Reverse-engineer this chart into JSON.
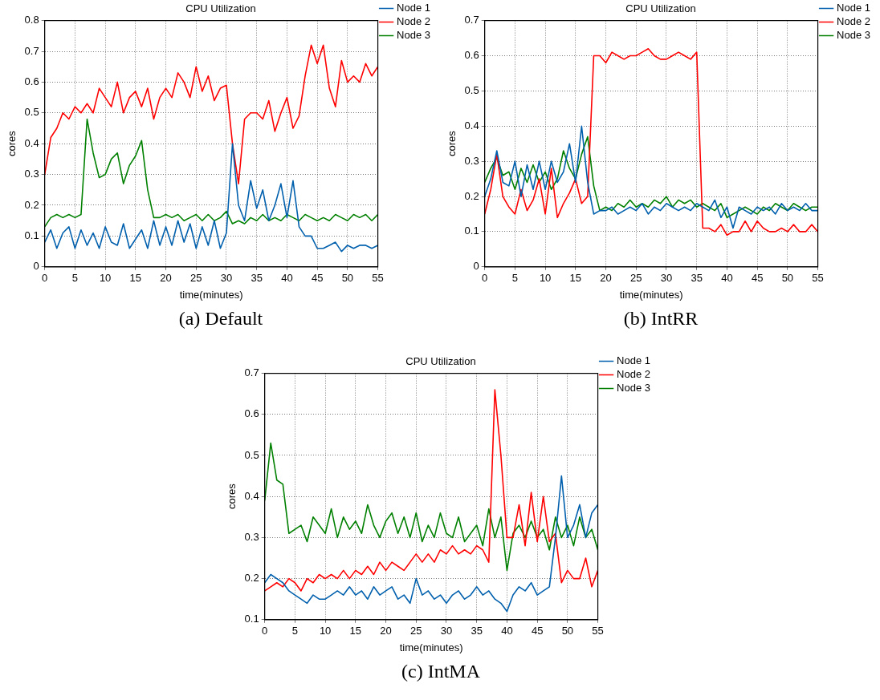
{
  "chart_data": [
    {
      "type": "line",
      "title": "CPU Utilization",
      "xlabel": "time(minutes)",
      "ylabel": "cores",
      "annotations": [
        "(a) Default"
      ],
      "legend": "top right",
      "grid": true,
      "marker": "none",
      "x": [
        0,
        1,
        2,
        3,
        4,
        5,
        6,
        7,
        8,
        9,
        10,
        11,
        12,
        13,
        14,
        15,
        16,
        17,
        18,
        19,
        20,
        21,
        22,
        23,
        24,
        25,
        26,
        27,
        28,
        29,
        30,
        31,
        32,
        33,
        34,
        35,
        36,
        37,
        38,
        39,
        40,
        41,
        42,
        43,
        44,
        45,
        46,
        47,
        48,
        49,
        50,
        51,
        52,
        53,
        54,
        55
      ],
      "xlim": [
        0,
        55
      ],
      "xticks": [
        0,
        5,
        10,
        15,
        20,
        25,
        30,
        35,
        40,
        45,
        50,
        55
      ],
      "ylim": [
        0,
        0.8
      ],
      "yticks": [
        0,
        0.1,
        0.2,
        0.3,
        0.4,
        0.5,
        0.6,
        0.7,
        0.8
      ],
      "series": [
        {
          "name": "Node 1",
          "color": "#0060ad",
          "values": [
            0.08,
            0.12,
            0.06,
            0.11,
            0.13,
            0.06,
            0.12,
            0.07,
            0.11,
            0.06,
            0.13,
            0.08,
            0.07,
            0.14,
            0.06,
            0.09,
            0.12,
            0.06,
            0.15,
            0.07,
            0.13,
            0.07,
            0.15,
            0.08,
            0.14,
            0.06,
            0.13,
            0.07,
            0.15,
            0.06,
            0.11,
            0.4,
            0.2,
            0.15,
            0.28,
            0.19,
            0.25,
            0.15,
            0.2,
            0.27,
            0.16,
            0.28,
            0.13,
            0.1,
            0.1,
            0.06,
            0.06,
            0.07,
            0.08,
            0.05,
            0.07,
            0.06,
            0.07,
            0.07,
            0.06,
            0.07
          ]
        },
        {
          "name": "Node 2",
          "color": "#ff0000",
          "values": [
            0.3,
            0.42,
            0.45,
            0.5,
            0.48,
            0.52,
            0.5,
            0.53,
            0.5,
            0.58,
            0.55,
            0.52,
            0.6,
            0.5,
            0.55,
            0.57,
            0.52,
            0.58,
            0.48,
            0.55,
            0.58,
            0.55,
            0.63,
            0.6,
            0.55,
            0.65,
            0.57,
            0.62,
            0.54,
            0.58,
            0.59,
            0.4,
            0.27,
            0.48,
            0.5,
            0.5,
            0.48,
            0.54,
            0.44,
            0.5,
            0.55,
            0.45,
            0.49,
            0.62,
            0.72,
            0.66,
            0.72,
            0.58,
            0.52,
            0.67,
            0.6,
            0.62,
            0.6,
            0.66,
            0.62,
            0.65
          ]
        },
        {
          "name": "Node 3",
          "color": "#008000",
          "values": [
            0.13,
            0.16,
            0.17,
            0.16,
            0.17,
            0.16,
            0.17,
            0.48,
            0.37,
            0.29,
            0.3,
            0.35,
            0.37,
            0.27,
            0.33,
            0.36,
            0.41,
            0.25,
            0.16,
            0.16,
            0.17,
            0.16,
            0.17,
            0.15,
            0.16,
            0.17,
            0.15,
            0.17,
            0.15,
            0.16,
            0.18,
            0.14,
            0.15,
            0.14,
            0.16,
            0.15,
            0.17,
            0.15,
            0.16,
            0.15,
            0.17,
            0.16,
            0.15,
            0.17,
            0.16,
            0.15,
            0.16,
            0.15,
            0.17,
            0.16,
            0.15,
            0.17,
            0.16,
            0.17,
            0.15,
            0.17
          ]
        }
      ]
    },
    {
      "type": "line",
      "title": "CPU Utilization",
      "xlabel": "time(minutes)",
      "ylabel": "cores",
      "annotations": [
        "(b) IntRR"
      ],
      "legend": "top right",
      "grid": true,
      "marker": "none",
      "x": [
        0,
        1,
        2,
        3,
        4,
        5,
        6,
        7,
        8,
        9,
        10,
        11,
        12,
        13,
        14,
        15,
        16,
        17,
        18,
        19,
        20,
        21,
        22,
        23,
        24,
        25,
        26,
        27,
        28,
        29,
        30,
        31,
        32,
        33,
        34,
        35,
        36,
        37,
        38,
        39,
        40,
        41,
        42,
        43,
        44,
        45,
        46,
        47,
        48,
        49,
        50,
        51,
        52,
        53,
        54,
        55
      ],
      "xlim": [
        0,
        55
      ],
      "xticks": [
        0,
        5,
        10,
        15,
        20,
        25,
        30,
        35,
        40,
        45,
        50,
        55
      ],
      "ylim": [
        0,
        0.7
      ],
      "yticks": [
        0,
        0.1,
        0.2,
        0.3,
        0.4,
        0.5,
        0.6,
        0.7
      ],
      "series": [
        {
          "name": "Node 1",
          "color": "#0060ad",
          "values": [
            0.2,
            0.25,
            0.33,
            0.24,
            0.23,
            0.3,
            0.2,
            0.29,
            0.22,
            0.3,
            0.22,
            0.3,
            0.24,
            0.27,
            0.35,
            0.24,
            0.4,
            0.24,
            0.15,
            0.16,
            0.16,
            0.17,
            0.15,
            0.16,
            0.17,
            0.16,
            0.18,
            0.15,
            0.17,
            0.16,
            0.18,
            0.17,
            0.16,
            0.17,
            0.16,
            0.18,
            0.17,
            0.16,
            0.19,
            0.14,
            0.17,
            0.11,
            0.17,
            0.16,
            0.15,
            0.17,
            0.16,
            0.17,
            0.15,
            0.18,
            0.16,
            0.17,
            0.16,
            0.18,
            0.16,
            0.16
          ]
        },
        {
          "name": "Node 2",
          "color": "#ff0000",
          "values": [
            0.15,
            0.22,
            0.32,
            0.2,
            0.17,
            0.15,
            0.22,
            0.16,
            0.19,
            0.25,
            0.15,
            0.28,
            0.14,
            0.18,
            0.21,
            0.25,
            0.18,
            0.2,
            0.6,
            0.6,
            0.58,
            0.61,
            0.6,
            0.59,
            0.6,
            0.6,
            0.61,
            0.62,
            0.6,
            0.59,
            0.59,
            0.6,
            0.61,
            0.6,
            0.59,
            0.61,
            0.11,
            0.11,
            0.1,
            0.12,
            0.09,
            0.1,
            0.1,
            0.13,
            0.1,
            0.13,
            0.11,
            0.1,
            0.1,
            0.11,
            0.1,
            0.12,
            0.1,
            0.1,
            0.12,
            0.1
          ]
        },
        {
          "name": "Node 3",
          "color": "#008000",
          "values": [
            0.24,
            0.28,
            0.31,
            0.26,
            0.27,
            0.22,
            0.28,
            0.24,
            0.29,
            0.24,
            0.27,
            0.22,
            0.25,
            0.33,
            0.28,
            0.25,
            0.32,
            0.37,
            0.23,
            0.16,
            0.17,
            0.16,
            0.18,
            0.17,
            0.19,
            0.17,
            0.18,
            0.17,
            0.19,
            0.18,
            0.2,
            0.17,
            0.19,
            0.18,
            0.19,
            0.17,
            0.18,
            0.17,
            0.16,
            0.18,
            0.14,
            0.15,
            0.16,
            0.17,
            0.16,
            0.15,
            0.17,
            0.16,
            0.18,
            0.17,
            0.16,
            0.18,
            0.17,
            0.16,
            0.17,
            0.17
          ]
        }
      ]
    },
    {
      "type": "line",
      "title": "CPU Utilization",
      "xlabel": "time(minutes)",
      "ylabel": "cores",
      "annotations": [
        "(c) IntMA"
      ],
      "legend": "top right",
      "grid": true,
      "marker": "none",
      "x": [
        0,
        1,
        2,
        3,
        4,
        5,
        6,
        7,
        8,
        9,
        10,
        11,
        12,
        13,
        14,
        15,
        16,
        17,
        18,
        19,
        20,
        21,
        22,
        23,
        24,
        25,
        26,
        27,
        28,
        29,
        30,
        31,
        32,
        33,
        34,
        35,
        36,
        37,
        38,
        39,
        40,
        41,
        42,
        43,
        44,
        45,
        46,
        47,
        48,
        49,
        50,
        51,
        52,
        53,
        54,
        55
      ],
      "xlim": [
        0,
        55
      ],
      "xticks": [
        0,
        5,
        10,
        15,
        20,
        25,
        30,
        35,
        40,
        45,
        50,
        55
      ],
      "ylim": [
        0.1,
        0.7
      ],
      "yticks": [
        0.1,
        0.2,
        0.3,
        0.4,
        0.5,
        0.6,
        0.7
      ],
      "series": [
        {
          "name": "Node 1",
          "color": "#0060ad",
          "values": [
            0.19,
            0.21,
            0.2,
            0.19,
            0.17,
            0.16,
            0.15,
            0.14,
            0.16,
            0.15,
            0.15,
            0.16,
            0.17,
            0.16,
            0.18,
            0.16,
            0.17,
            0.15,
            0.18,
            0.16,
            0.17,
            0.18,
            0.15,
            0.16,
            0.14,
            0.2,
            0.16,
            0.17,
            0.15,
            0.16,
            0.14,
            0.16,
            0.17,
            0.15,
            0.16,
            0.18,
            0.16,
            0.17,
            0.15,
            0.14,
            0.12,
            0.16,
            0.18,
            0.17,
            0.19,
            0.16,
            0.17,
            0.18,
            0.3,
            0.45,
            0.3,
            0.33,
            0.38,
            0.3,
            0.36,
            0.38
          ]
        },
        {
          "name": "Node 2",
          "color": "#ff0000",
          "values": [
            0.17,
            0.18,
            0.19,
            0.18,
            0.2,
            0.19,
            0.17,
            0.2,
            0.19,
            0.21,
            0.2,
            0.21,
            0.2,
            0.22,
            0.2,
            0.22,
            0.21,
            0.23,
            0.21,
            0.24,
            0.22,
            0.24,
            0.23,
            0.22,
            0.24,
            0.26,
            0.24,
            0.26,
            0.24,
            0.27,
            0.26,
            0.28,
            0.26,
            0.27,
            0.26,
            0.28,
            0.27,
            0.24,
            0.66,
            0.5,
            0.3,
            0.3,
            0.38,
            0.28,
            0.41,
            0.29,
            0.4,
            0.29,
            0.31,
            0.19,
            0.22,
            0.2,
            0.2,
            0.25,
            0.18,
            0.22
          ]
        },
        {
          "name": "Node 3",
          "color": "#008000",
          "values": [
            0.39,
            0.53,
            0.44,
            0.43,
            0.31,
            0.32,
            0.33,
            0.29,
            0.35,
            0.33,
            0.31,
            0.37,
            0.3,
            0.35,
            0.32,
            0.34,
            0.31,
            0.38,
            0.33,
            0.3,
            0.34,
            0.36,
            0.31,
            0.35,
            0.3,
            0.36,
            0.29,
            0.33,
            0.3,
            0.36,
            0.31,
            0.3,
            0.35,
            0.29,
            0.31,
            0.33,
            0.28,
            0.37,
            0.3,
            0.35,
            0.22,
            0.31,
            0.33,
            0.3,
            0.34,
            0.3,
            0.32,
            0.27,
            0.35,
            0.3,
            0.33,
            0.28,
            0.35,
            0.3,
            0.32,
            0.27
          ]
        }
      ]
    }
  ]
}
